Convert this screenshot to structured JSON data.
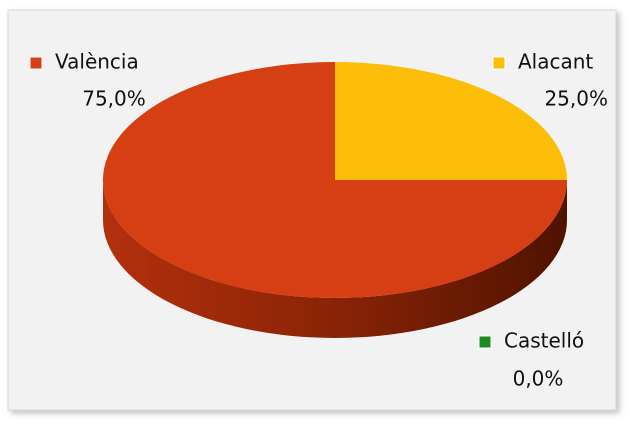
{
  "chart_data": {
    "type": "pie",
    "categories": [
      "València",
      "Alacant",
      "Castelló"
    ],
    "values": [
      75,
      25,
      0
    ],
    "value_labels": [
      "75,0%",
      "25,0%",
      "0,0%"
    ],
    "colors": [
      "#d63f13",
      "#fbbd08",
      "#1f8a1f"
    ]
  }
}
